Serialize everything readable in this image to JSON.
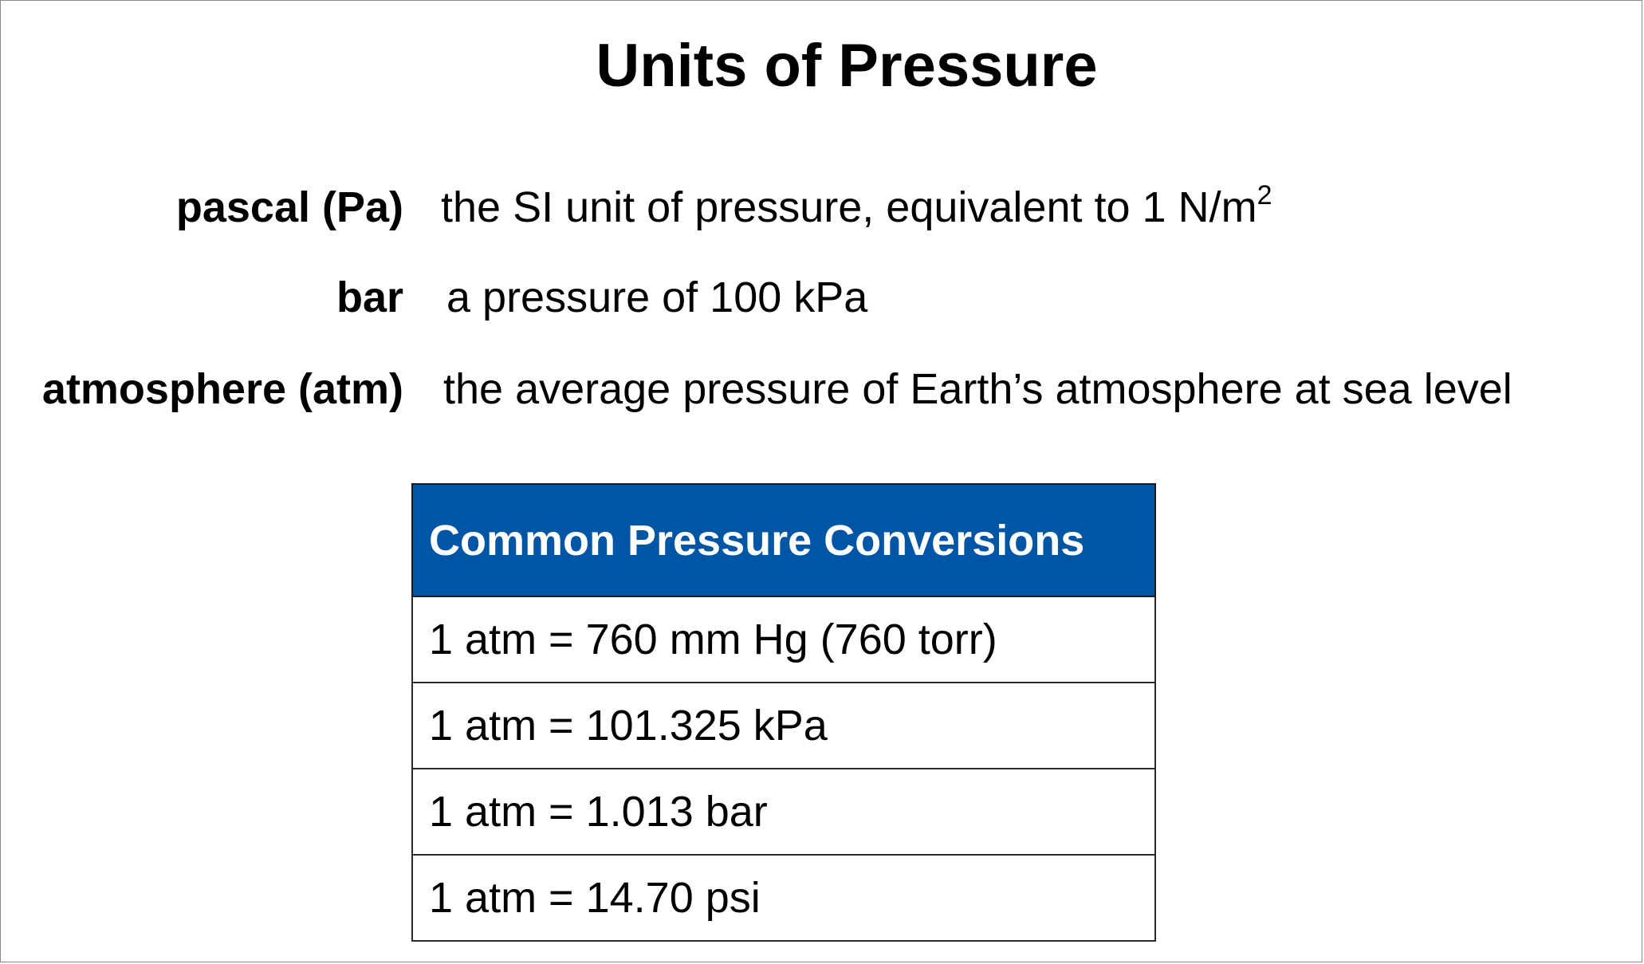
{
  "slide": {
    "title": "Units of Pressure"
  },
  "definitions": [
    {
      "term": "pascal (Pa)",
      "description": "the SI unit of pressure, equivalent to 1 N/m",
      "superscript": "2"
    },
    {
      "term": "bar",
      "description": "a pressure of 100 kPa"
    },
    {
      "term": "atmosphere (atm)",
      "description": "the average pressure of Earth’s atmosphere at sea level"
    }
  ],
  "conversion_table": {
    "header": "Common Pressure Conversions",
    "header_color": "#0055a5",
    "rows": [
      "1 atm = 760 mm Hg (760 torr)",
      "1 atm = 101.325 kPa",
      "1 atm = 1.013 bar",
      "1 atm = 14.70 psi"
    ]
  }
}
